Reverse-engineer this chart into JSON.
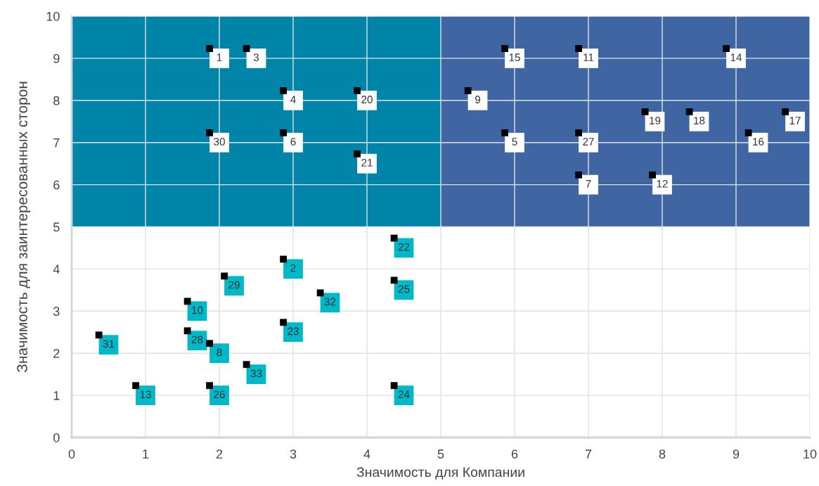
{
  "chart_data": {
    "type": "scatter",
    "xlabel": "Значимость для Компании",
    "ylabel": "Значимость для заинтересованных сторон",
    "xlim": [
      0,
      10
    ],
    "ylim": [
      0,
      10
    ],
    "xticks": [
      0,
      1,
      2,
      3,
      4,
      5,
      6,
      7,
      8,
      9,
      10
    ],
    "yticks": [
      0,
      1,
      2,
      3,
      4,
      5,
      6,
      7,
      8,
      9,
      10
    ],
    "grid": true,
    "marker": "square",
    "bands": [
      {
        "axis": "x",
        "from": 0,
        "to": 5,
        "color": "#0085a8"
      },
      {
        "axis": "x",
        "from": 5,
        "to": 10,
        "color": "#3f66a3"
      }
    ],
    "series": [
      {
        "color": "#ffffff",
        "x": [
          2,
          2.5,
          3,
          4,
          2,
          3,
          4,
          6,
          7,
          9,
          5.5,
          7.9,
          8.5,
          9.8,
          9.3,
          6,
          7,
          7,
          8
        ],
        "values": [
          9,
          9,
          8,
          8,
          7,
          7,
          6.5,
          9,
          9,
          9,
          8,
          7.5,
          7.5,
          7.5,
          7,
          7,
          7,
          6,
          6
        ]
      },
      {
        "color": "#00b8c8",
        "x": [
          4.5,
          3,
          2.2,
          1.7,
          3.5,
          4.5,
          1.7,
          0.5,
          3,
          2,
          2.5,
          1,
          2,
          4.5
        ],
        "values": [
          4.5,
          4,
          3.6,
          3,
          3.2,
          3.5,
          2.3,
          2.2,
          2.5,
          2,
          1.5,
          1,
          1,
          1
        ]
      }
    ],
    "annotations": [
      {
        "text": "1",
        "x": 2,
        "y": 9
      },
      {
        "text": "3",
        "x": 2.5,
        "y": 9
      },
      {
        "text": "4",
        "x": 3,
        "y": 8
      },
      {
        "text": "20",
        "x": 4,
        "y": 8
      },
      {
        "text": "30",
        "x": 2,
        "y": 7
      },
      {
        "text": "6",
        "x": 3,
        "y": 7
      },
      {
        "text": "21",
        "x": 4,
        "y": 6.5
      },
      {
        "text": "15",
        "x": 6,
        "y": 9
      },
      {
        "text": "11",
        "x": 7,
        "y": 9
      },
      {
        "text": "14",
        "x": 9,
        "y": 9
      },
      {
        "text": "9",
        "x": 5.5,
        "y": 8
      },
      {
        "text": "19",
        "x": 7.9,
        "y": 7.5
      },
      {
        "text": "18",
        "x": 8.5,
        "y": 7.5
      },
      {
        "text": "17",
        "x": 9.8,
        "y": 7.5
      },
      {
        "text": "16",
        "x": 9.3,
        "y": 7
      },
      {
        "text": "5",
        "x": 6,
        "y": 7
      },
      {
        "text": "27",
        "x": 7,
        "y": 7
      },
      {
        "text": "7",
        "x": 7,
        "y": 6
      },
      {
        "text": "12",
        "x": 8,
        "y": 6
      },
      {
        "text": "22",
        "x": 4.5,
        "y": 4.5
      },
      {
        "text": "2",
        "x": 3,
        "y": 4
      },
      {
        "text": "29",
        "x": 2.2,
        "y": 3.6
      },
      {
        "text": "10",
        "x": 1.7,
        "y": 3
      },
      {
        "text": "32",
        "x": 3.5,
        "y": 3.2
      },
      {
        "text": "25",
        "x": 4.5,
        "y": 3.5
      },
      {
        "text": "28",
        "x": 1.7,
        "y": 2.3
      },
      {
        "text": "31",
        "x": 0.5,
        "y": 2.2
      },
      {
        "text": "23",
        "x": 3,
        "y": 2.5
      },
      {
        "text": "8",
        "x": 2,
        "y": 2
      },
      {
        "text": "33",
        "x": 2.5,
        "y": 1.5
      },
      {
        "text": "13",
        "x": 1,
        "y": 1
      },
      {
        "text": "26",
        "x": 2,
        "y": 1
      },
      {
        "text": "24",
        "x": 4.5,
        "y": 1
      }
    ]
  }
}
